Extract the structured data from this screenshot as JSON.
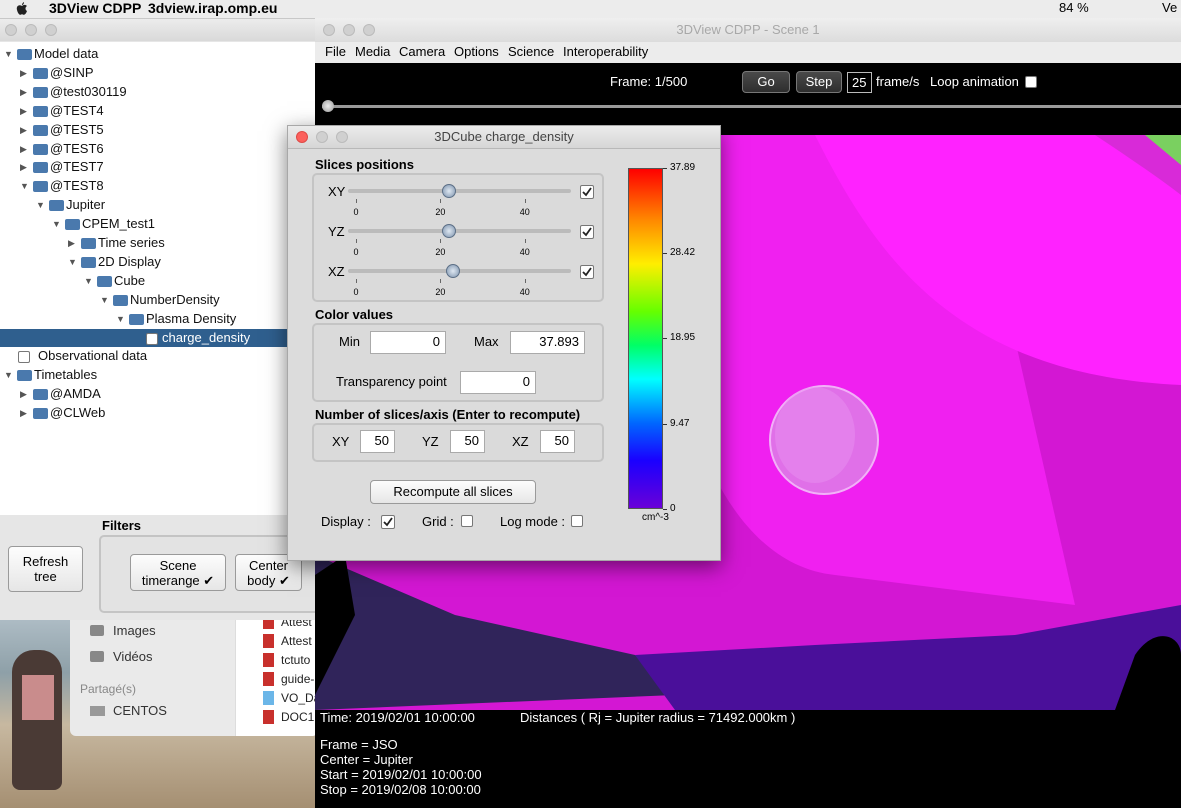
{
  "menubar": {
    "app": "3DView CDPP",
    "window": "3dview.irap.omp.eu",
    "battery": "84 %",
    "user": "Ve"
  },
  "tree": {
    "nodes": [
      {
        "label": "Model data",
        "children": [
          {
            "label": "@SINP"
          },
          {
            "label": "@test030119"
          },
          {
            "label": "@TEST4"
          },
          {
            "label": "@TEST5"
          },
          {
            "label": "@TEST6"
          },
          {
            "label": "@TEST7"
          },
          {
            "label": "@TEST8",
            "children": [
              {
                "label": "Jupiter",
                "children": [
                  {
                    "label": "CPEM_test1",
                    "children": [
                      {
                        "label": "Time series"
                      },
                      {
                        "label": "2D Display",
                        "children": [
                          {
                            "label": "Cube",
                            "children": [
                              {
                                "label": "NumberDensity",
                                "children": [
                                  {
                                    "label": "Plasma Density",
                                    "children": [
                                      {
                                        "label": "charge_density",
                                        "checkbox": true,
                                        "selected": true
                                      }
                                    ]
                                  }
                                ]
                              }
                            ]
                          }
                        ]
                      }
                    ]
                  }
                ]
              }
            ]
          }
        ]
      },
      {
        "label": "Observational data",
        "checkbox": true
      },
      {
        "label": "Timetables",
        "children": [
          {
            "label": "@AMDA"
          },
          {
            "label": "@CLWeb"
          }
        ]
      }
    ]
  },
  "filters": {
    "title": "Filters",
    "refresh": "Refresh tree",
    "scene_timerange": "Scene timerange ✔",
    "center_body": "Center body ✔"
  },
  "finder": {
    "sidebar": [
      "Images",
      "Vidéos"
    ],
    "shared_title": "Partagé(s)",
    "shared": [
      "CENTOS"
    ],
    "files": [
      "Attest",
      "Attest",
      "tctuto",
      "guide-",
      "VO_Da",
      "DOC1"
    ]
  },
  "scene": {
    "title": "3DView CDPP - Scene 1",
    "menu": [
      "File",
      "Media",
      "Camera",
      "Options",
      "Science",
      "Interoperability"
    ],
    "frame": "Frame: 1/500",
    "go": "Go",
    "step": "Step",
    "fps": 25,
    "fps_unit": "frame/s",
    "loop": "Loop animation",
    "time": "Time: 2019/02/01 10:00:00",
    "distances": "Distances ( Rj = Jupiter radius = 71492.000km )",
    "info": [
      "Frame = JSO",
      "Center = Jupiter",
      "Start = 2019/02/01 10:00:00",
      "Stop = 2019/02/08 10:00:00"
    ]
  },
  "dialog": {
    "title": "3DCube  charge_density",
    "slices_title": "Slices positions",
    "sliders": {
      "lim": [
        0,
        50
      ],
      "ticks": [
        0,
        20,
        40
      ],
      "rows": [
        {
          "label": "XY",
          "value": 22,
          "checked": true
        },
        {
          "label": "YZ",
          "value": 22,
          "checked": true
        },
        {
          "label": "XZ",
          "value": 23,
          "checked": true
        }
      ]
    },
    "color_title": "Color values",
    "min_label": "Min",
    "min": 0,
    "max_label": "Max",
    "max": 37.893,
    "transparency_label": "Transparency point",
    "transparency": 0,
    "count_title": "Number of slices/axis (Enter to recompute)",
    "counts": [
      {
        "label": "XY",
        "value": 50
      },
      {
        "label": "YZ",
        "value": 50
      },
      {
        "label": "XZ",
        "value": 50
      }
    ],
    "recompute": "Recompute all slices",
    "options": [
      {
        "label": "Display :",
        "checked": true
      },
      {
        "label": "Grid :",
        "checked": false
      },
      {
        "label": "Log mode :",
        "checked": false
      }
    ],
    "colorbar": {
      "lim": [
        0,
        37.89
      ],
      "ticks": [
        37.89,
        28.42,
        18.95,
        9.47,
        0
      ],
      "unit": "cm^-3"
    }
  }
}
